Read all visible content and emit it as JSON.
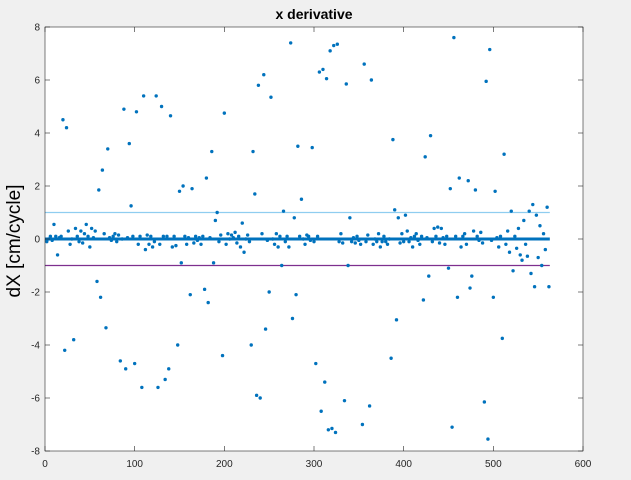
{
  "chart_data": {
    "type": "scatter",
    "title": "x derivative",
    "xlabel": "",
    "ylabel": "dX [cm/cycle]",
    "xlim": [
      0,
      600
    ],
    "ylim": [
      -8,
      8
    ],
    "xticks": [
      0,
      100,
      200,
      300,
      400,
      500,
      600
    ],
    "yticks": [
      -8,
      -6,
      -4,
      -2,
      0,
      2,
      4,
      6,
      8
    ],
    "grid": false,
    "colors": {
      "points": "#0072BD",
      "mean_line": "#0072BD",
      "upper_threshold": "#8fcdf0",
      "lower_threshold": "#7e2f8e",
      "plot_bg": "#ffffff",
      "figure_bg": "#f0f0f0"
    },
    "reference_lines": [
      {
        "y": 0,
        "style": "thick",
        "color": "#0072BD"
      },
      {
        "y": 1,
        "style": "thin",
        "color": "#8fcdf0"
      },
      {
        "y": -1,
        "style": "thin",
        "color": "#7e2f8e"
      }
    ],
    "series": [
      {
        "points": [
          [
            2,
            -0.1
          ],
          [
            4,
            0
          ],
          [
            6,
            0.1
          ],
          [
            8,
            -0.05
          ],
          [
            10,
            0.55
          ],
          [
            12,
            0.1
          ],
          [
            14,
            -0.6
          ],
          [
            16,
            0.05
          ],
          [
            18,
            0.1
          ],
          [
            20,
            4.5
          ],
          [
            22,
            -4.2
          ],
          [
            24,
            4.2
          ],
          [
            26,
            0.3
          ],
          [
            28,
            -0.2
          ],
          [
            30,
            0
          ],
          [
            32,
            -3.8
          ],
          [
            34,
            0.4
          ],
          [
            36,
            0.1
          ],
          [
            38,
            -0.1
          ],
          [
            40,
            0.3
          ],
          [
            42,
            -0.15
          ],
          [
            44,
            0.2
          ],
          [
            46,
            0.55
          ],
          [
            48,
            0.1
          ],
          [
            50,
            -0.3
          ],
          [
            52,
            0.4
          ],
          [
            54,
            0.05
          ],
          [
            56,
            0.3
          ],
          [
            58,
            -1.6
          ],
          [
            60,
            1.85
          ],
          [
            62,
            -2.2
          ],
          [
            64,
            2.6
          ],
          [
            66,
            0.2
          ],
          [
            68,
            -3.35
          ],
          [
            70,
            3.4
          ],
          [
            72,
            0.05
          ],
          [
            74,
            -0.05
          ],
          [
            76,
            0.1
          ],
          [
            78,
            0.2
          ],
          [
            80,
            -0.1
          ],
          [
            82,
            0.15
          ],
          [
            84,
            -4.6
          ],
          [
            86,
            0
          ],
          [
            88,
            4.9
          ],
          [
            90,
            -4.9
          ],
          [
            92,
            0.05
          ],
          [
            94,
            3.6
          ],
          [
            96,
            1.25
          ],
          [
            98,
            0.1
          ],
          [
            100,
            -4.7
          ],
          [
            102,
            4.8
          ],
          [
            104,
            -0.2
          ],
          [
            106,
            0.1
          ],
          [
            108,
            -5.6
          ],
          [
            110,
            5.4
          ],
          [
            112,
            -0.4
          ],
          [
            114,
            0.15
          ],
          [
            116,
            -0.2
          ],
          [
            118,
            0.1
          ],
          [
            120,
            -0.3
          ],
          [
            122,
            -0.1
          ],
          [
            124,
            5.4
          ],
          [
            126,
            -5.6
          ],
          [
            128,
            -0.2
          ],
          [
            130,
            5.0
          ],
          [
            132,
            0.1
          ],
          [
            134,
            -5.3
          ],
          [
            136,
            0.1
          ],
          [
            138,
            -4.9
          ],
          [
            140,
            4.65
          ],
          [
            142,
            -0.3
          ],
          [
            144,
            0.1
          ],
          [
            146,
            -0.25
          ],
          [
            148,
            -4.0
          ],
          [
            150,
            1.8
          ],
          [
            152,
            -0.9
          ],
          [
            154,
            2.0
          ],
          [
            156,
            0.1
          ],
          [
            158,
            -0.2
          ],
          [
            160,
            0.05
          ],
          [
            162,
            -2.1
          ],
          [
            164,
            1.9
          ],
          [
            166,
            -0.15
          ],
          [
            168,
            0.1
          ],
          [
            170,
            -0.05
          ],
          [
            172,
            0.05
          ],
          [
            174,
            -0.2
          ],
          [
            176,
            0.1
          ],
          [
            178,
            -1.9
          ],
          [
            180,
            2.3
          ],
          [
            182,
            -2.4
          ],
          [
            184,
            0.05
          ],
          [
            186,
            3.3
          ],
          [
            188,
            -0.9
          ],
          [
            190,
            0.7
          ],
          [
            192,
            1.0
          ],
          [
            194,
            -0.1
          ],
          [
            196,
            0.15
          ],
          [
            198,
            -4.4
          ],
          [
            200,
            4.75
          ],
          [
            202,
            -0.2
          ],
          [
            204,
            0.2
          ],
          [
            206,
            0
          ],
          [
            208,
            0.15
          ],
          [
            210,
            0.05
          ],
          [
            212,
            0.25
          ],
          [
            214,
            -0.15
          ],
          [
            216,
            0.1
          ],
          [
            218,
            -0.3
          ],
          [
            220,
            0.6
          ],
          [
            222,
            -0.5
          ],
          [
            224,
            0
          ],
          [
            226,
            0.15
          ],
          [
            228,
            -0.1
          ],
          [
            230,
            -4.0
          ],
          [
            232,
            3.3
          ],
          [
            234,
            1.7
          ],
          [
            236,
            -5.9
          ],
          [
            238,
            5.8
          ],
          [
            240,
            -6.0
          ],
          [
            242,
            0.2
          ],
          [
            244,
            6.2
          ],
          [
            246,
            -3.4
          ],
          [
            248,
            -0.05
          ],
          [
            250,
            -2.0
          ],
          [
            252,
            5.35
          ],
          [
            254,
            0
          ],
          [
            256,
            -0.2
          ],
          [
            258,
            0.2
          ],
          [
            260,
            -0.3
          ],
          [
            262,
            0.1
          ],
          [
            264,
            -1.0
          ],
          [
            266,
            1.05
          ],
          [
            268,
            -0.1
          ],
          [
            270,
            0.1
          ],
          [
            272,
            -0.3
          ],
          [
            274,
            7.4
          ],
          [
            276,
            -3.0
          ],
          [
            278,
            0.8
          ],
          [
            280,
            -2.1
          ],
          [
            282,
            3.5
          ],
          [
            284,
            0.1
          ],
          [
            286,
            1.5
          ],
          [
            288,
            0
          ],
          [
            290,
            -0.2
          ],
          [
            292,
            0.15
          ],
          [
            294,
            0.1
          ],
          [
            296,
            -0.05
          ],
          [
            298,
            3.45
          ],
          [
            300,
            -0.1
          ],
          [
            302,
            -4.7
          ],
          [
            304,
            0.1
          ],
          [
            306,
            6.3
          ],
          [
            308,
            -6.5
          ],
          [
            310,
            6.4
          ],
          [
            312,
            -5.4
          ],
          [
            314,
            6.05
          ],
          [
            316,
            -7.2
          ],
          [
            318,
            7.1
          ],
          [
            320,
            -7.15
          ],
          [
            322,
            7.3
          ],
          [
            324,
            -7.3
          ],
          [
            326,
            7.35
          ],
          [
            328,
            -0.1
          ],
          [
            330,
            0.2
          ],
          [
            332,
            -0.15
          ],
          [
            334,
            -6.1
          ],
          [
            336,
            5.85
          ],
          [
            338,
            -1.0
          ],
          [
            340,
            0.8
          ],
          [
            342,
            -0.1
          ],
          [
            344,
            0.05
          ],
          [
            346,
            -0.15
          ],
          [
            348,
            0.1
          ],
          [
            350,
            -0.05
          ],
          [
            352,
            -0.2
          ],
          [
            354,
            -7.0
          ],
          [
            356,
            6.6
          ],
          [
            358,
            -0.1
          ],
          [
            360,
            0.15
          ],
          [
            362,
            -6.3
          ],
          [
            364,
            6.0
          ],
          [
            366,
            -0.2
          ],
          [
            368,
            0
          ],
          [
            370,
            -0.1
          ],
          [
            372,
            0.2
          ],
          [
            374,
            -0.3
          ],
          [
            376,
            -0.1
          ],
          [
            378,
            0.1
          ],
          [
            380,
            -0.1
          ],
          [
            382,
            -0.2
          ],
          [
            384,
            0
          ],
          [
            386,
            -4.5
          ],
          [
            388,
            3.75
          ],
          [
            390,
            1.1
          ],
          [
            392,
            -3.05
          ],
          [
            394,
            0.8
          ],
          [
            396,
            -0.15
          ],
          [
            398,
            0.2
          ],
          [
            400,
            -0.1
          ],
          [
            402,
            0.9
          ],
          [
            404,
            0.3
          ],
          [
            406,
            -0.1
          ],
          [
            408,
            0.05
          ],
          [
            410,
            -0.3
          ],
          [
            412,
            0.1
          ],
          [
            414,
            0.2
          ],
          [
            416,
            -0.05
          ],
          [
            418,
            -0.2
          ],
          [
            420,
            0.1
          ],
          [
            422,
            -2.3
          ],
          [
            424,
            3.1
          ],
          [
            426,
            0.05
          ],
          [
            428,
            -1.4
          ],
          [
            430,
            3.9
          ],
          [
            432,
            -0.1
          ],
          [
            434,
            0.4
          ],
          [
            436,
            0.1
          ],
          [
            438,
            0.45
          ],
          [
            440,
            -0.15
          ],
          [
            442,
            0.4
          ],
          [
            444,
            0.05
          ],
          [
            446,
            -0.2
          ],
          [
            448,
            0.1
          ],
          [
            450,
            -1.1
          ],
          [
            452,
            1.9
          ],
          [
            454,
            -7.1
          ],
          [
            456,
            7.6
          ],
          [
            458,
            0.1
          ],
          [
            460,
            -2.2
          ],
          [
            462,
            2.3
          ],
          [
            464,
            -0.3
          ],
          [
            466,
            0.1
          ],
          [
            468,
            0.2
          ],
          [
            470,
            -0.2
          ],
          [
            472,
            2.2
          ],
          [
            474,
            -1.85
          ],
          [
            476,
            -1.4
          ],
          [
            478,
            0.3
          ],
          [
            480,
            1.85
          ],
          [
            482,
            0.1
          ],
          [
            484,
            -0.05
          ],
          [
            486,
            0.25
          ],
          [
            488,
            -0.15
          ],
          [
            490,
            -6.15
          ],
          [
            492,
            5.95
          ],
          [
            494,
            -7.55
          ],
          [
            496,
            7.15
          ],
          [
            498,
            -0.05
          ],
          [
            500,
            -2.2
          ],
          [
            502,
            1.8
          ],
          [
            504,
            0.05
          ],
          [
            506,
            -0.3
          ],
          [
            508,
            0.1
          ],
          [
            510,
            -3.75
          ],
          [
            512,
            3.2
          ],
          [
            514,
            -0.2
          ],
          [
            516,
            0.3
          ],
          [
            518,
            -0.5
          ],
          [
            520,
            1.05
          ],
          [
            522,
            -1.2
          ],
          [
            524,
            0.1
          ],
          [
            526,
            -0.35
          ],
          [
            528,
            0.4
          ],
          [
            530,
            -0.6
          ],
          [
            532,
            -0.8
          ],
          [
            534,
            0.7
          ],
          [
            536,
            -0.2
          ],
          [
            538,
            -0.65
          ],
          [
            540,
            1.05
          ],
          [
            542,
            -1.3
          ],
          [
            544,
            1.3
          ],
          [
            546,
            -1.8
          ],
          [
            548,
            0.9
          ],
          [
            550,
            -0.7
          ],
          [
            552,
            0.5
          ],
          [
            554,
            -1.0
          ],
          [
            556,
            0.2
          ],
          [
            558,
            -0.4
          ],
          [
            560,
            1.2
          ],
          [
            562,
            -1.8
          ]
        ]
      }
    ]
  }
}
